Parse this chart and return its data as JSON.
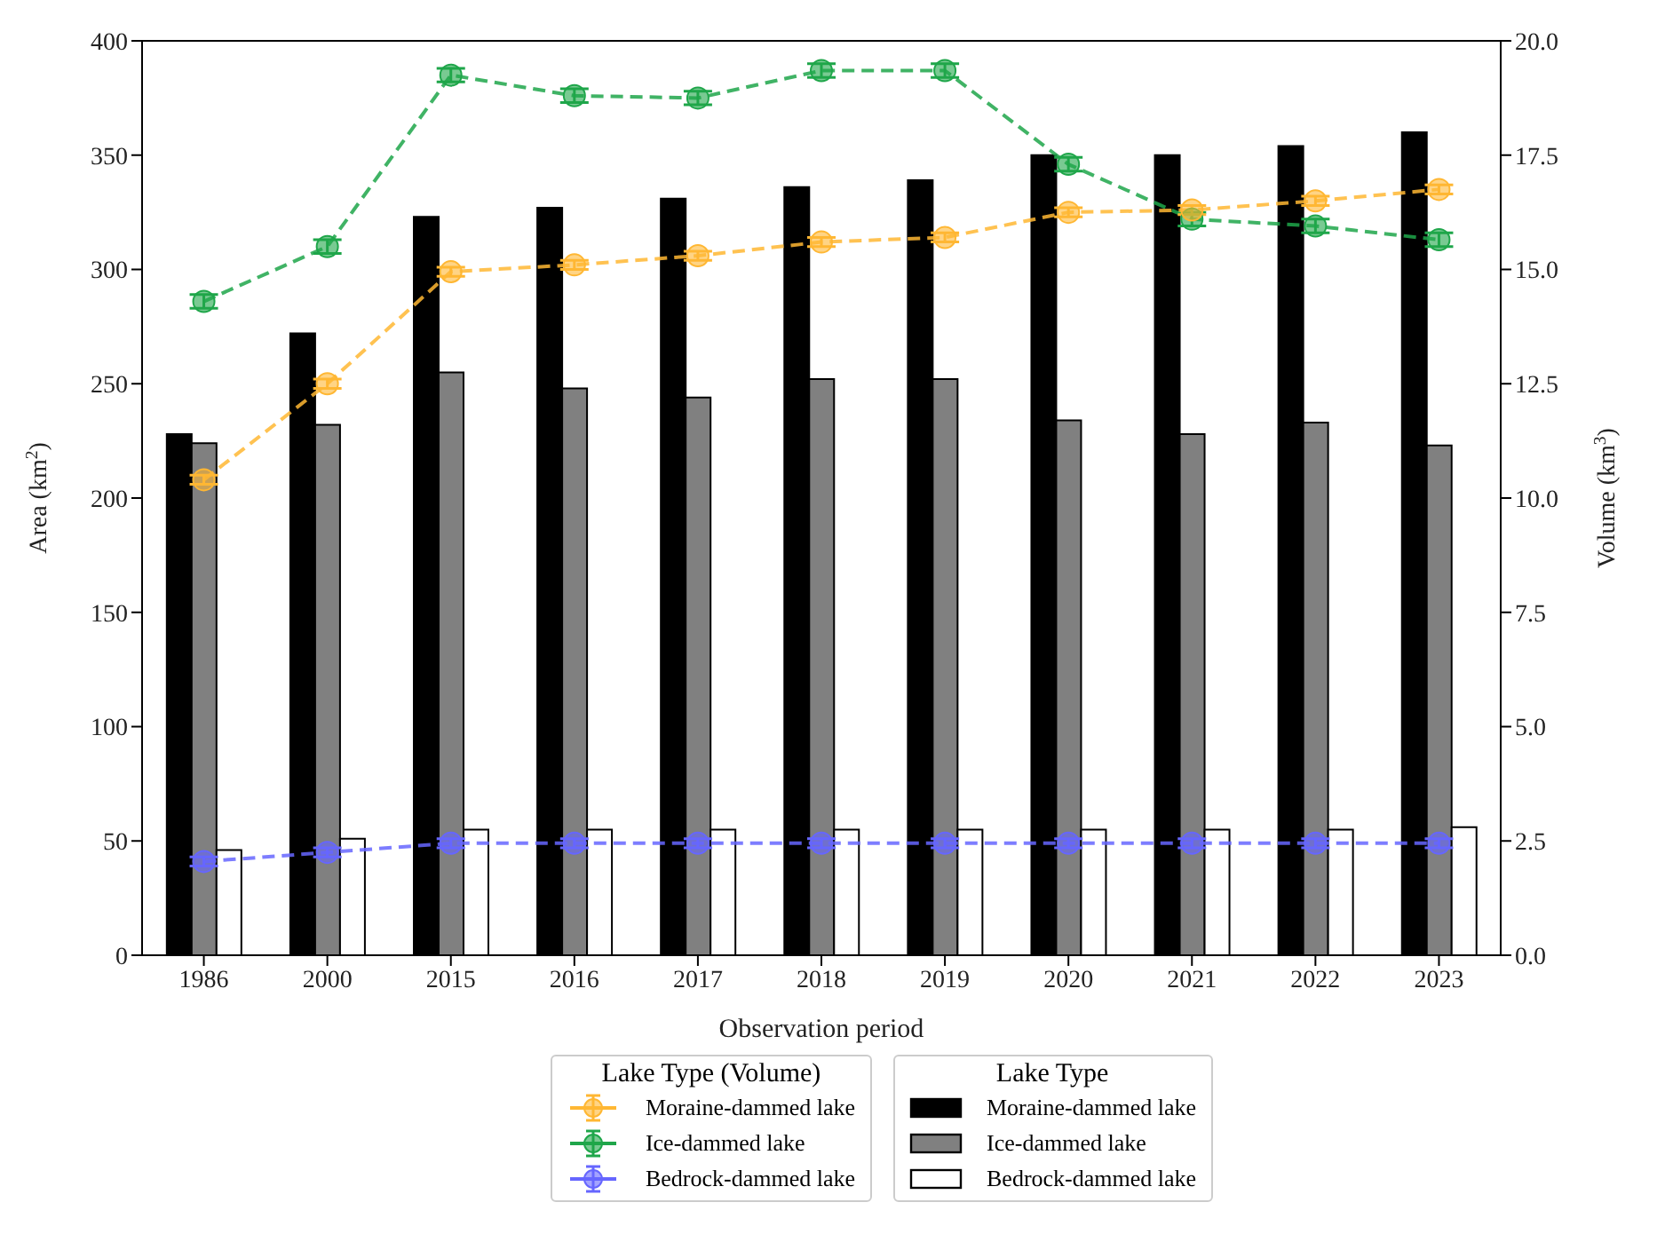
{
  "chart_data": {
    "type": "bar",
    "xlabel": "Observation period",
    "ylabel": "Area (km$^{2}$)",
    "y2label": "Volume (km$^{3}$)",
    "legend_title": [
      "Lake Type (Volume)",
      "Lake Type"
    ],
    "legend": "bottom",
    "categories": [
      "1986",
      "2000",
      "2015",
      "2016",
      "2017",
      "2018",
      "2019",
      "2020",
      "2021",
      "2022",
      "2023"
    ],
    "ylim": [
      0,
      400
    ],
    "yticks": [
      0,
      50,
      100,
      150,
      200,
      250,
      300,
      350,
      400
    ],
    "y2lim": [
      0,
      20
    ],
    "y2ticks": [
      {
        "value": 0,
        "label": "0.0"
      },
      {
        "value": 2.5,
        "label": "2.5"
      },
      {
        "value": 5,
        "label": "5.0"
      },
      {
        "value": 7.5,
        "label": "7.5"
      },
      {
        "value": 10,
        "label": "10.0"
      },
      {
        "value": 12.5,
        "label": "12.5"
      },
      {
        "value": 15,
        "label": "15.0"
      },
      {
        "value": 17.5,
        "label": "17.5"
      },
      {
        "value": 20,
        "label": "20.0"
      }
    ],
    "grid": false,
    "marker": "circle",
    "line_style": "dashed",
    "series": [
      {
        "name": "Moraine-dammed lake",
        "type": "line",
        "axis": "y2",
        "color": "#ffb733",
        "values": [
          10.4,
          12.5,
          14.95,
          15.1,
          15.3,
          15.6,
          15.7,
          16.25,
          16.3,
          16.5,
          16.75
        ],
        "errors": [
          0.1,
          0.1,
          0.1,
          0.1,
          0.1,
          0.1,
          0.1,
          0.1,
          0.1,
          0.1,
          0.1
        ]
      },
      {
        "name": "Ice-dammed lake",
        "type": "line",
        "axis": "y2",
        "color": "#1fa64a",
        "values": [
          14.3,
          15.5,
          19.25,
          18.8,
          18.75,
          19.35,
          19.35,
          17.3,
          16.1,
          15.95,
          15.65
        ],
        "errors": [
          0.15,
          0.15,
          0.15,
          0.15,
          0.15,
          0.15,
          0.15,
          0.15,
          0.15,
          0.15,
          0.15
        ]
      },
      {
        "name": "Bedrock-dammed lake",
        "type": "line",
        "axis": "y2",
        "color": "#6666ff",
        "values": [
          2.05,
          2.25,
          2.45,
          2.45,
          2.45,
          2.45,
          2.45,
          2.45,
          2.45,
          2.45,
          2.45
        ],
        "errors": [
          0.1,
          0.1,
          0.1,
          0.1,
          0.1,
          0.1,
          0.1,
          0.1,
          0.1,
          0.1,
          0.1
        ]
      },
      {
        "name": "Moraine-dammed lake",
        "color": "#000000",
        "values": [
          228,
          272,
          323,
          327,
          331,
          336,
          339,
          350,
          350,
          354,
          360
        ]
      },
      {
        "name": "Ice-dammed lake",
        "color": "#808080",
        "values": [
          224,
          232,
          255,
          248,
          244,
          252,
          252,
          234,
          228,
          233,
          223
        ]
      },
      {
        "name": "Bedrock-dammed lake",
        "color": "#ffffff",
        "values": [
          46,
          51,
          55,
          55,
          55,
          55,
          55,
          55,
          55,
          55,
          56
        ]
      }
    ]
  }
}
